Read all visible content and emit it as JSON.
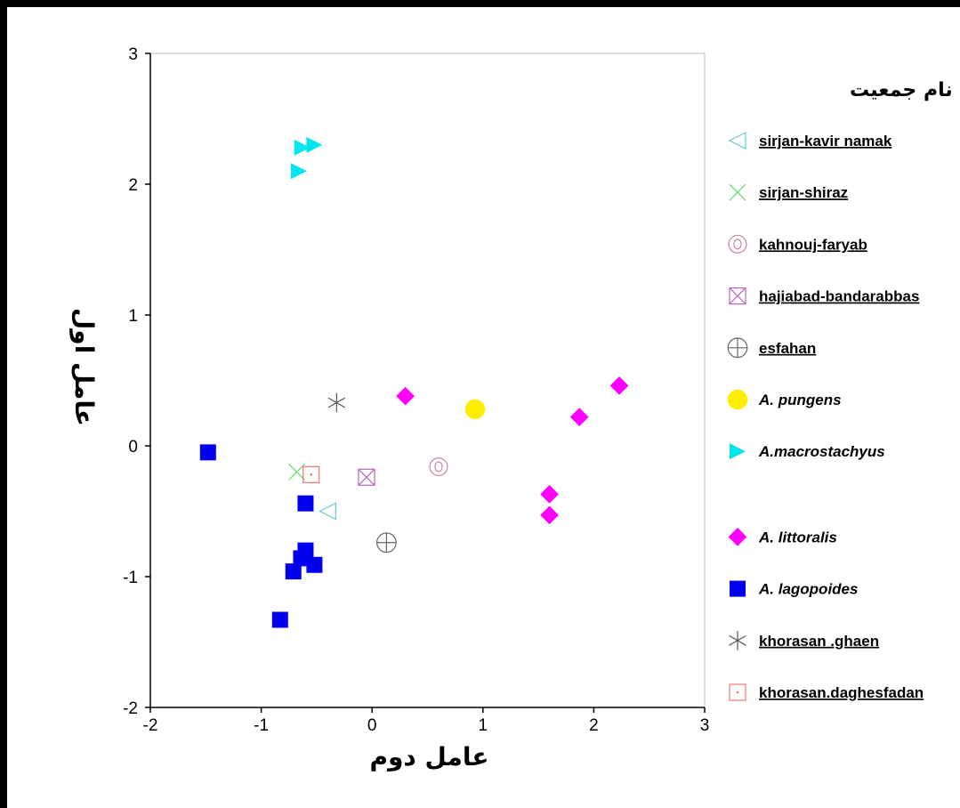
{
  "chart_data": {
    "type": "scatter",
    "xlabel": "عامل دوم",
    "ylabel": "عامل اول",
    "xlim": [
      -2,
      3
    ],
    "ylim": [
      -2,
      3
    ],
    "xticks": [
      "-2",
      "-1",
      "0",
      "1",
      "2",
      "3"
    ],
    "yticks": [
      "3",
      "2",
      "1",
      "0",
      "-1",
      "-2"
    ],
    "grid": false,
    "legend_title": "نام جمعیت",
    "legend_position": "right",
    "series": [
      {
        "name": "sirjan-kavir namak",
        "marker": "triangle-left-open",
        "color": "#66cccc",
        "underline": true,
        "italic": false,
        "points": [
          [
            -0.4,
            -0.5
          ]
        ]
      },
      {
        "name": "sirjan-shiraz",
        "marker": "x",
        "color": "#66dd66",
        "underline": true,
        "italic": false,
        "points": [
          [
            -0.68,
            -0.2
          ]
        ]
      },
      {
        "name": "kahnouj-faryab",
        "marker": "double-circle",
        "color": "#cc8899",
        "underline": true,
        "italic": false,
        "points": [
          [
            0.6,
            -0.16
          ]
        ]
      },
      {
        "name": "hajiabad-bandarabbas",
        "marker": "box-x",
        "color": "#bb66bb",
        "underline": true,
        "italic": false,
        "points": [
          [
            -0.05,
            -0.24
          ]
        ]
      },
      {
        "name": "esfahan",
        "marker": "circle-plus",
        "color": "#666666",
        "underline": true,
        "italic": false,
        "points": [
          [
            0.13,
            -0.74
          ]
        ]
      },
      {
        "name": "A. pungens",
        "marker": "circle-filled",
        "color": "#ffee00",
        "underline": false,
        "italic": true,
        "points": [
          [
            0.93,
            0.28
          ]
        ]
      },
      {
        "name": "A.macrostachyus",
        "marker": "triangle-right-filled",
        "color": "#00e5ee",
        "underline": false,
        "italic": true,
        "points": [
          [
            -0.63,
            2.28
          ],
          [
            -0.52,
            2.3
          ],
          [
            -0.66,
            2.1
          ]
        ]
      },
      {
        "name": "A. littoralis",
        "marker": "diamond-filled",
        "color": "#ff00ff",
        "underline": false,
        "italic": true,
        "gap_before": true,
        "points": [
          [
            0.3,
            0.38
          ],
          [
            1.6,
            -0.37
          ],
          [
            1.6,
            -0.53
          ],
          [
            1.87,
            0.22
          ],
          [
            2.23,
            0.46
          ]
        ]
      },
      {
        "name": "A. lagopoides",
        "marker": "square-filled",
        "color": "#0000ee",
        "underline": false,
        "italic": true,
        "points": [
          [
            -1.48,
            -0.05
          ],
          [
            -0.6,
            -0.44
          ],
          [
            -0.6,
            -0.8
          ],
          [
            -0.64,
            -0.86
          ],
          [
            -0.52,
            -0.91
          ],
          [
            -0.71,
            -0.96
          ],
          [
            -0.83,
            -1.33
          ]
        ]
      },
      {
        "name": "khorasan .ghaen",
        "marker": "asterisk",
        "color": "#555555",
        "underline": true,
        "italic": false,
        "points": [
          [
            -0.32,
            0.33
          ]
        ]
      },
      {
        "name": "khorasan.daghesfadan",
        "marker": "box-dot",
        "color": "#ee7777",
        "underline": true,
        "italic": false,
        "points": [
          [
            -0.55,
            -0.22
          ]
        ]
      }
    ]
  }
}
